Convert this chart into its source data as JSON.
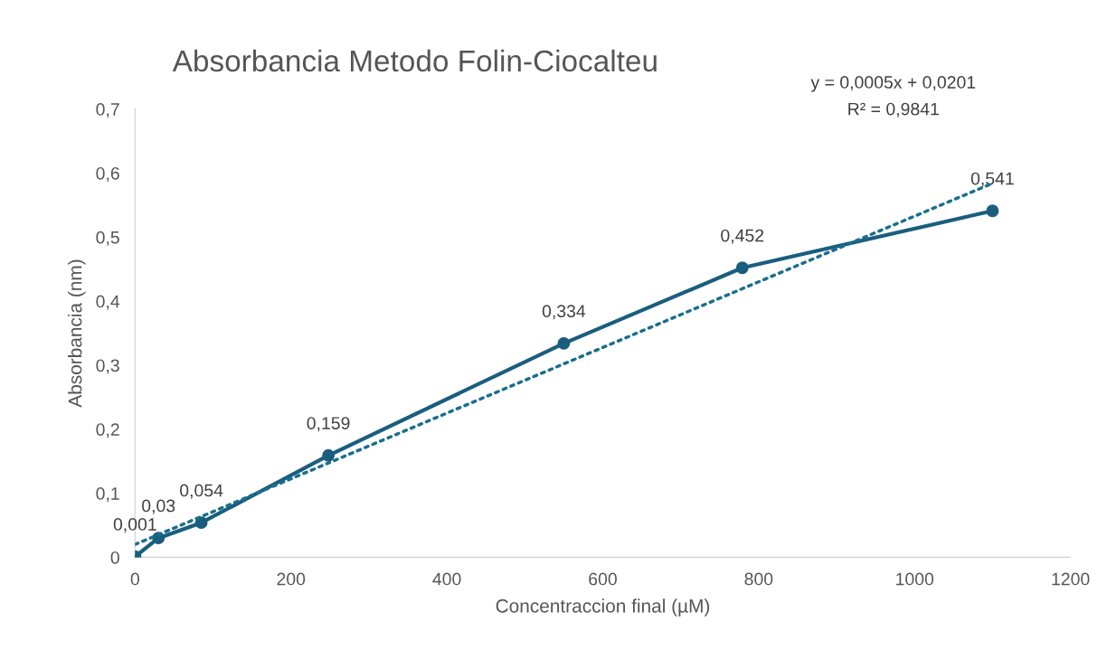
{
  "chart_data": {
    "type": "line",
    "title": "Absorbancia Metodo Folin-Ciocalteu",
    "xlabel": "Concentraccion final (µM)",
    "ylabel": "Absorbancia (nm)",
    "x": [
      0,
      30,
      85,
      248,
      550,
      779,
      1100
    ],
    "series": [
      {
        "color": "#1a5e7e",
        "values": [
          0.001,
          0.03,
          0.054,
          0.159,
          0.334,
          0.452,
          0.541
        ],
        "value_labels": [
          "0,001",
          "0,03",
          "0,054",
          "0,159",
          "0,334",
          "0,452",
          "0,541"
        ],
        "marker": "circle",
        "line_style": "solid"
      },
      {
        "type": "line",
        "color": "#1a6e8e",
        "x": [
          0,
          1100
        ],
        "values": [
          0.02,
          0.584
        ],
        "marker": "none",
        "line_style": "dotted"
      }
    ],
    "annotations": [
      "y = 0,0005x + 0,0201",
      "R² = 0,9841"
    ],
    "xlim": [
      0,
      1200
    ],
    "xticks": [
      0,
      200,
      400,
      600,
      800,
      1000,
      1200
    ],
    "ylim": [
      0,
      0.7
    ],
    "yticks": [
      0,
      {
        "value": 0.1,
        "label": "0,1"
      },
      {
        "value": 0.2,
        "label": "0,2"
      },
      {
        "value": 0.3,
        "label": "0,3"
      },
      {
        "value": 0.4,
        "label": "0,4"
      },
      {
        "value": 0.5,
        "label": "0,5"
      },
      {
        "value": 0.6,
        "label": "0,6"
      },
      {
        "value": 0.7,
        "label": "0,7"
      }
    ],
    "grid": false
  }
}
